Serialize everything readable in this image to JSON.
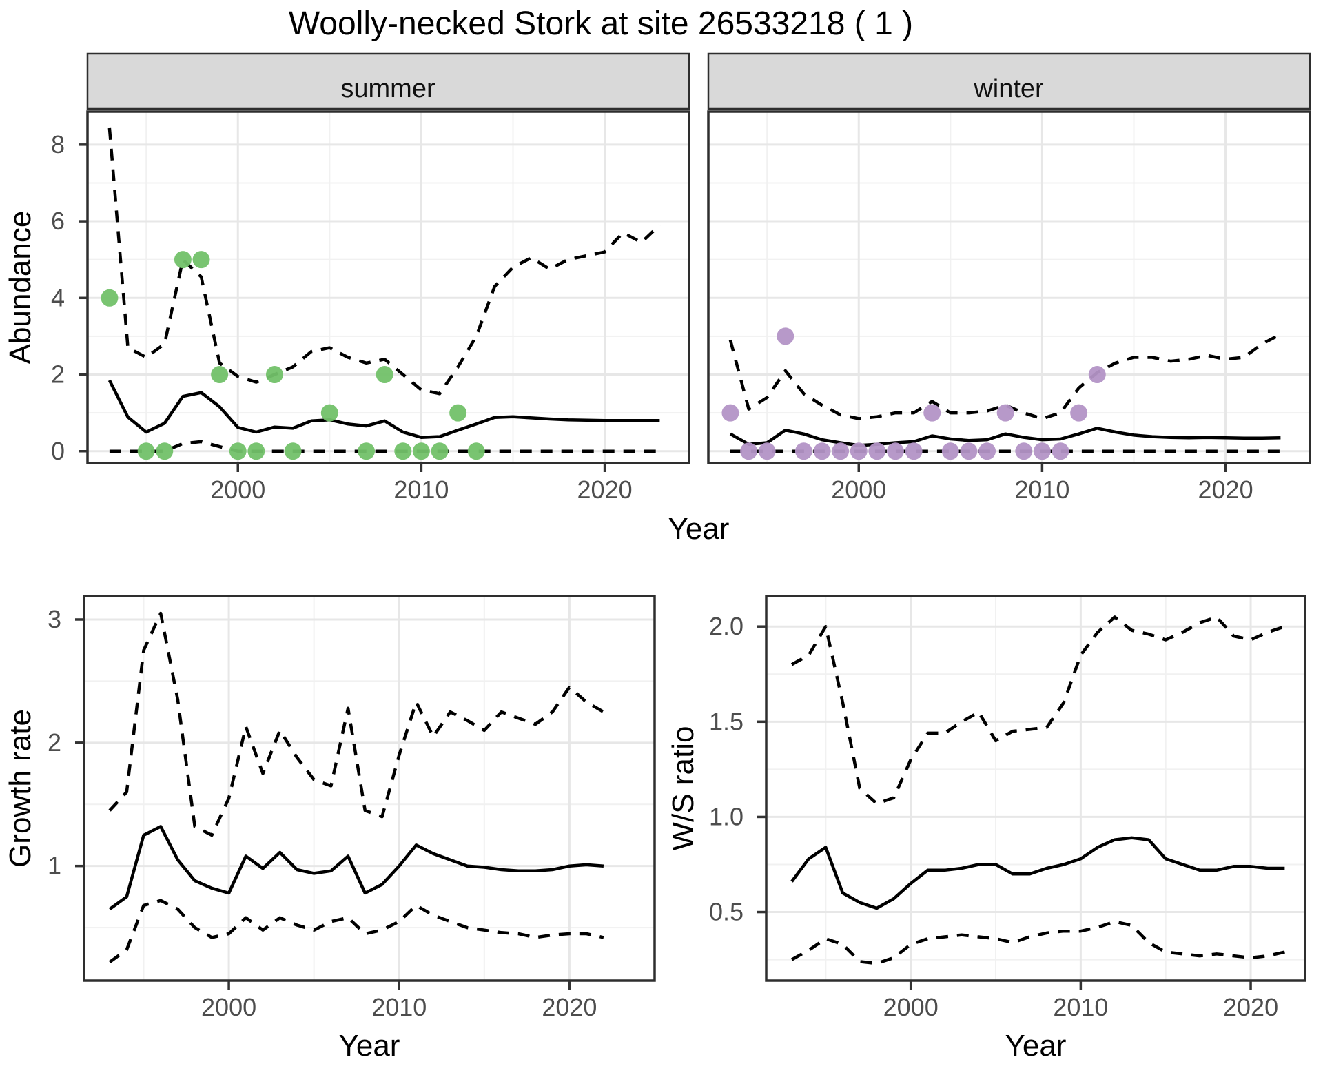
{
  "title": "Woolly-necked Stork at site 26533218 ( 1 )",
  "axis_labels": {
    "year": "Year",
    "abundance": "Abundance",
    "growth_rate": "Growth rate",
    "ws_ratio": "W/S ratio"
  },
  "colors": {
    "summer_point": "#72c169",
    "winter_point": "#b394c6",
    "line": "#000000",
    "strip_bg": "#d9d9d9",
    "panel_border": "#2e2e2e",
    "grid_major": "#e7e7e7",
    "grid_minor": "#f1f1f1",
    "tick_label": "#4d4d4d",
    "background": "#ffffff"
  },
  "chart_data": [
    {
      "id": "abundance-summer",
      "type": "line",
      "facet_label": "summer",
      "xlabel": "Year",
      "ylabel": "Abundance",
      "xlim": [
        1991.8,
        2024.6
      ],
      "ylim": [
        -0.31,
        8.86
      ],
      "xticks": [
        2000,
        2010,
        2020
      ],
      "xtick_labels": [
        "2000",
        "2010",
        "2020"
      ],
      "xminor": [
        1995,
        2005,
        2015
      ],
      "yticks": [
        0,
        2,
        4,
        6,
        8
      ],
      "ytick_labels": [
        "0",
        "2",
        "4",
        "6",
        "8"
      ],
      "yminor": [
        1,
        3,
        5,
        7
      ],
      "years": [
        1993,
        1994,
        1995,
        1996,
        1997,
        1998,
        1999,
        2000,
        2001,
        2002,
        2003,
        2004,
        2005,
        2006,
        2007,
        2008,
        2009,
        2010,
        2011,
        2012,
        2013,
        2014,
        2015,
        2016,
        2017,
        2018,
        2019,
        2020,
        2021,
        2022,
        2023
      ],
      "series": [
        {
          "name": "upper_ci",
          "style": "dashed",
          "values": [
            8.43,
            2.7,
            2.45,
            2.8,
            5.0,
            4.55,
            2.3,
            1.95,
            1.8,
            2.0,
            2.2,
            2.6,
            2.7,
            2.45,
            2.3,
            2.4,
            2.0,
            1.6,
            1.5,
            2.2,
            3.0,
            4.3,
            4.8,
            5.05,
            4.75,
            5.0,
            5.1,
            5.2,
            5.7,
            5.45,
            5.9
          ]
        },
        {
          "name": "lower_ci",
          "style": "dashed",
          "values": [
            0,
            0,
            0,
            0,
            0.2,
            0.25,
            0.12,
            0,
            0,
            0,
            0,
            0,
            0,
            0,
            0,
            0,
            0,
            0,
            0,
            0,
            0,
            0,
            0,
            0,
            0,
            0,
            0,
            0,
            0,
            0,
            0
          ]
        },
        {
          "name": "median",
          "style": "solid",
          "values": [
            1.85,
            0.89,
            0.5,
            0.73,
            1.43,
            1.53,
            1.16,
            0.62,
            0.5,
            0.63,
            0.6,
            0.79,
            0.82,
            0.71,
            0.66,
            0.79,
            0.5,
            0.36,
            0.38,
            0.55,
            0.71,
            0.88,
            0.9,
            0.87,
            0.84,
            0.82,
            0.81,
            0.8,
            0.8,
            0.8,
            0.8
          ]
        }
      ],
      "points": {
        "x": [
          1993,
          1995,
          1996,
          1997,
          1998,
          1999,
          2000,
          2001,
          2002,
          2003,
          2005,
          2007,
          2008,
          2009,
          2010,
          2011,
          2012,
          2013
        ],
        "y": [
          4,
          0,
          0,
          5,
          5,
          2,
          0,
          0,
          2,
          0,
          1,
          0,
          2,
          0,
          0,
          0,
          1,
          0
        ]
      },
      "point_color": "#72c169"
    },
    {
      "id": "abundance-winter",
      "type": "line",
      "facet_label": "winter",
      "xlabel": "Year",
      "ylabel": "Abundance",
      "xlim": [
        1991.8,
        2024.6
      ],
      "ylim": [
        -0.31,
        8.86
      ],
      "xticks": [
        2000,
        2010,
        2020
      ],
      "xtick_labels": [
        "2000",
        "2010",
        "2020"
      ],
      "xminor": [
        1995,
        2005,
        2015
      ],
      "yticks": [
        0,
        2,
        4,
        6,
        8
      ],
      "ytick_labels": [
        "0",
        "2",
        "4",
        "6",
        "8"
      ],
      "yminor": [
        1,
        3,
        5,
        7
      ],
      "years": [
        1993,
        1994,
        1995,
        1996,
        1997,
        1998,
        1999,
        2000,
        2001,
        2002,
        2003,
        2004,
        2005,
        2006,
        2007,
        2008,
        2009,
        2010,
        2011,
        2012,
        2013,
        2014,
        2015,
        2016,
        2017,
        2018,
        2019,
        2020,
        2021,
        2022,
        2023
      ],
      "series": [
        {
          "name": "upper_ci",
          "style": "dashed",
          "values": [
            2.9,
            1.1,
            1.4,
            2.1,
            1.5,
            1.2,
            0.95,
            0.85,
            0.9,
            1.0,
            1.0,
            1.3,
            1.0,
            1.0,
            1.05,
            1.2,
            1.0,
            0.85,
            1.0,
            1.65,
            2.05,
            2.3,
            2.45,
            2.45,
            2.35,
            2.4,
            2.5,
            2.4,
            2.45,
            2.8,
            3.05
          ]
        },
        {
          "name": "lower_ci",
          "style": "dashed",
          "values": [
            0,
            0,
            0,
            0,
            0,
            0,
            0,
            0,
            0,
            0,
            0,
            0,
            0,
            0,
            0,
            0,
            0,
            0,
            0,
            0,
            0,
            0,
            0,
            0,
            0,
            0,
            0,
            0,
            0,
            0,
            0
          ]
        },
        {
          "name": "median",
          "style": "solid",
          "values": [
            0.45,
            0.18,
            0.22,
            0.55,
            0.45,
            0.3,
            0.22,
            0.15,
            0.18,
            0.22,
            0.25,
            0.4,
            0.32,
            0.28,
            0.3,
            0.45,
            0.36,
            0.3,
            0.32,
            0.45,
            0.6,
            0.5,
            0.42,
            0.38,
            0.36,
            0.35,
            0.36,
            0.35,
            0.34,
            0.34,
            0.35
          ]
        }
      ],
      "points": {
        "x": [
          1993,
          1994,
          1995,
          1996,
          1997,
          1998,
          1999,
          2000,
          2001,
          2002,
          2003,
          2004,
          2005,
          2006,
          2007,
          2008,
          2009,
          2010,
          2011,
          2012,
          2013
        ],
        "y": [
          1,
          0,
          0,
          3,
          0,
          0,
          0,
          0,
          0,
          0,
          0,
          1,
          0,
          0,
          0,
          1,
          0,
          0,
          0,
          1,
          2
        ]
      },
      "point_color": "#b394c6"
    },
    {
      "id": "growth-rate",
      "type": "line",
      "facet_label": "",
      "xlabel": "Year",
      "ylabel": "Growth rate",
      "xlim": [
        1991.5,
        2025.0
      ],
      "ylim": [
        0.07,
        3.19
      ],
      "xticks": [
        2000,
        2010,
        2020
      ],
      "xtick_labels": [
        "2000",
        "2010",
        "2020"
      ],
      "xminor": [
        1995,
        2005,
        2015
      ],
      "yticks": [
        1,
        2,
        3
      ],
      "ytick_labels": [
        "1",
        "2",
        "3"
      ],
      "yminor": [
        0.5,
        1.5,
        2.5
      ],
      "years": [
        1993,
        1994,
        1995,
        1996,
        1997,
        1998,
        1999,
        2000,
        2001,
        2002,
        2003,
        2004,
        2005,
        2006,
        2007,
        2008,
        2009,
        2010,
        2011,
        2012,
        2013,
        2014,
        2015,
        2016,
        2017,
        2018,
        2019,
        2020,
        2021,
        2022
      ],
      "series": [
        {
          "name": "upper_ci",
          "style": "dashed",
          "values": [
            1.45,
            1.6,
            2.75,
            3.05,
            2.35,
            1.32,
            1.25,
            1.55,
            2.13,
            1.75,
            2.1,
            1.88,
            1.7,
            1.65,
            2.28,
            1.45,
            1.4,
            1.9,
            2.33,
            2.05,
            2.25,
            2.18,
            2.1,
            2.25,
            2.2,
            2.15,
            2.25,
            2.45,
            2.33,
            2.25
          ]
        },
        {
          "name": "lower_ci",
          "style": "dashed",
          "values": [
            0.22,
            0.32,
            0.68,
            0.72,
            0.65,
            0.5,
            0.42,
            0.45,
            0.58,
            0.48,
            0.58,
            0.52,
            0.48,
            0.55,
            0.58,
            0.45,
            0.48,
            0.55,
            0.68,
            0.6,
            0.55,
            0.5,
            0.48,
            0.46,
            0.45,
            0.42,
            0.44,
            0.45,
            0.45,
            0.42
          ]
        },
        {
          "name": "median",
          "style": "solid",
          "values": [
            0.65,
            0.75,
            1.25,
            1.32,
            1.05,
            0.88,
            0.82,
            0.78,
            1.08,
            0.98,
            1.11,
            0.97,
            0.94,
            0.96,
            1.08,
            0.78,
            0.85,
            1.0,
            1.17,
            1.1,
            1.05,
            1.0,
            0.99,
            0.97,
            0.96,
            0.96,
            0.97,
            1.0,
            1.01,
            1.0
          ]
        }
      ]
    },
    {
      "id": "ws-ratio",
      "type": "line",
      "facet_label": "",
      "xlabel": "Year",
      "ylabel": "W/S ratio",
      "xlim": [
        1991.5,
        2023.2
      ],
      "ylim": [
        0.14,
        2.16
      ],
      "xticks": [
        2000,
        2010,
        2020
      ],
      "xtick_labels": [
        "2000",
        "2010",
        "2020"
      ],
      "xminor": [
        1995,
        2005,
        2015
      ],
      "yticks": [
        0.5,
        1.0,
        1.5,
        2.0
      ],
      "ytick_labels": [
        "0.5",
        "1.0",
        "1.5",
        "2.0"
      ],
      "yminor": [
        0.25,
        0.75,
        1.25,
        1.75
      ],
      "years": [
        1993,
        1994,
        1995,
        1996,
        1997,
        1998,
        1999,
        2000,
        2001,
        2002,
        2003,
        2004,
        2005,
        2006,
        2007,
        2008,
        2009,
        2010,
        2011,
        2012,
        2013,
        2014,
        2015,
        2016,
        2017,
        2018,
        2019,
        2020,
        2021,
        2022
      ],
      "series": [
        {
          "name": "upper_ci",
          "style": "dashed",
          "values": [
            1.8,
            1.85,
            2.0,
            1.6,
            1.15,
            1.07,
            1.1,
            1.3,
            1.44,
            1.44,
            1.5,
            1.55,
            1.4,
            1.45,
            1.46,
            1.47,
            1.6,
            1.85,
            1.97,
            2.05,
            1.98,
            1.96,
            1.93,
            1.97,
            2.02,
            2.05,
            1.95,
            1.93,
            1.97,
            2.0
          ]
        },
        {
          "name": "lower_ci",
          "style": "dashed",
          "values": [
            0.25,
            0.3,
            0.36,
            0.33,
            0.24,
            0.23,
            0.26,
            0.33,
            0.36,
            0.37,
            0.38,
            0.37,
            0.36,
            0.34,
            0.37,
            0.39,
            0.4,
            0.4,
            0.42,
            0.45,
            0.43,
            0.34,
            0.29,
            0.28,
            0.27,
            0.28,
            0.27,
            0.26,
            0.27,
            0.29
          ]
        },
        {
          "name": "median",
          "style": "solid",
          "values": [
            0.66,
            0.78,
            0.84,
            0.6,
            0.55,
            0.52,
            0.57,
            0.65,
            0.72,
            0.72,
            0.73,
            0.75,
            0.75,
            0.7,
            0.7,
            0.73,
            0.75,
            0.78,
            0.84,
            0.88,
            0.89,
            0.88,
            0.78,
            0.75,
            0.72,
            0.72,
            0.74,
            0.74,
            0.73,
            0.73
          ]
        }
      ]
    }
  ]
}
